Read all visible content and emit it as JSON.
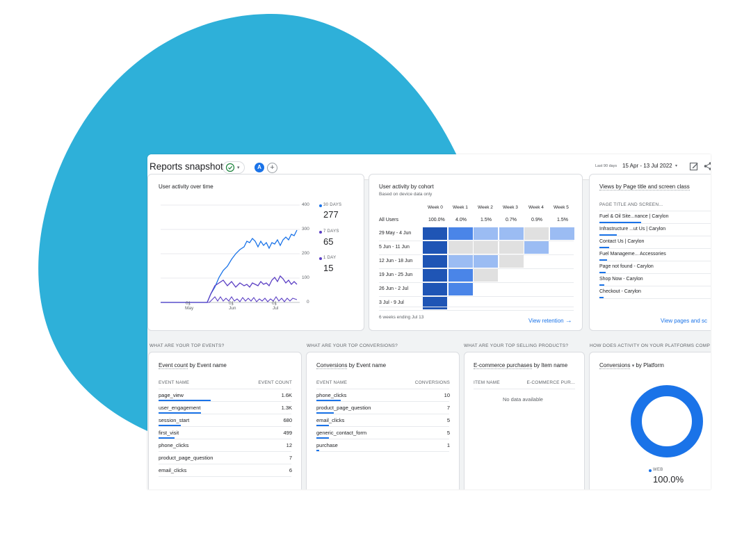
{
  "colors": {
    "blob": "#2eb0d9",
    "accent": "#1a73e8",
    "dark": "#1f55b5",
    "mid": "#4a85e8",
    "light": "#9bbcf3",
    "gray": "#e0e0e0",
    "purple": "#5b3fc4"
  },
  "header": {
    "title": "Reports snapshot",
    "avatar_letter": "A",
    "add_symbol": "+",
    "range_hint": "Last 90 days",
    "date_range": "15 Apr - 13 Jul 2022",
    "caret": "▾"
  },
  "activity": {
    "title": "User activity over time",
    "y_ticks": [
      "400",
      "300",
      "200",
      "100",
      "0"
    ],
    "x_ticks": [
      {
        "day": "01",
        "month": "May"
      },
      {
        "day": "01",
        "month": "Jun"
      },
      {
        "day": "01",
        "month": "Jul"
      }
    ],
    "legend": [
      {
        "label": "30 DAYS",
        "value": "277",
        "color": "#1a73e8"
      },
      {
        "label": "7 DAYS",
        "value": "65",
        "color": "#5b3fc4"
      },
      {
        "label": "1 DAY",
        "value": "15",
        "color": "#5b3fc4"
      }
    ]
  },
  "cohort": {
    "title": "User activity by cohort",
    "subtitle": "Based on device data only",
    "weeks": [
      "Week 0",
      "Week 1",
      "Week 2",
      "Week 3",
      "Week 4",
      "Week 5"
    ],
    "all_users_label": "All Users",
    "all_users_values": [
      "100.0%",
      "4.0%",
      "1.5%",
      "0.7%",
      "0.9%",
      "1.5%"
    ],
    "rows": [
      {
        "label": "29 May - 4 Jun",
        "cells": [
          "d",
          "m",
          "l",
          "l",
          "g",
          "l"
        ]
      },
      {
        "label": "5 Jun - 11 Jun",
        "cells": [
          "d",
          "g",
          "g",
          "g",
          "l"
        ]
      },
      {
        "label": "12 Jun - 18 Jun",
        "cells": [
          "d",
          "l",
          "l",
          "g"
        ]
      },
      {
        "label": "19 Jun - 25 Jun",
        "cells": [
          "d",
          "m",
          "g"
        ]
      },
      {
        "label": "26 Jun - 2 Jul",
        "cells": [
          "d",
          "m"
        ]
      },
      {
        "label": "3 Jul - 9 Jul",
        "cells": [
          "d"
        ]
      }
    ],
    "footer": "6 weeks ending Jul 13",
    "link": "View retention",
    "arrow": "→"
  },
  "pages": {
    "title": "Views by Page title and screen class",
    "col": "PAGE TITLE AND SCREEN...",
    "rows": [
      {
        "label": "Fuel & Oil Site...nance | Carylon",
        "bar": 60
      },
      {
        "label": "Infrastructure ...ut Us | Carylon",
        "bar": 25
      },
      {
        "label": "Contact Us | Carylon",
        "bar": 14
      },
      {
        "label": "Fuel Manageme... Accessories",
        "bar": 11
      },
      {
        "label": "Page not found - Carylon",
        "bar": 9
      },
      {
        "label": "Shop Now - Carylon",
        "bar": 7
      },
      {
        "label": "Checkout - Carylon",
        "bar": 6
      }
    ],
    "link": "View pages and sc"
  },
  "sections": {
    "events": "WHAT ARE YOUR TOP EVENTS?",
    "conversions": "WHAT ARE YOUR TOP CONVERSIONS?",
    "products": "WHAT ARE YOUR TOP SELLING PRODUCTS?",
    "platforms": "HOW DOES ACTIVITY ON YOUR PLATFORMS COMP"
  },
  "events": {
    "title_a": "Event count",
    "title_b": " by Event name",
    "col1": "EVENT NAME",
    "col2": "EVENT COUNT",
    "rows": [
      {
        "name": "page_view",
        "value": "1.6K",
        "bar": 1.0
      },
      {
        "name": "user_engagement",
        "value": "1.3K",
        "bar": 0.81
      },
      {
        "name": "session_start",
        "value": "680",
        "bar": 0.42
      },
      {
        "name": "first_visit",
        "value": "499",
        "bar": 0.31
      },
      {
        "name": "phone_clicks",
        "value": "12",
        "bar": 0
      },
      {
        "name": "product_page_question",
        "value": "7",
        "bar": 0
      },
      {
        "name": "email_clicks",
        "value": "6",
        "bar": 0
      }
    ]
  },
  "conversions": {
    "title_a": "Conversions",
    "title_b": " by Event name",
    "col1": "EVENT NAME",
    "col2": "CONVERSIONS",
    "rows": [
      {
        "name": "phone_clicks",
        "value": "10",
        "bar": 1.0
      },
      {
        "name": "product_page_question",
        "value": "7",
        "bar": 0.7
      },
      {
        "name": "email_clicks",
        "value": "5",
        "bar": 0.5
      },
      {
        "name": "generic_contact_form",
        "value": "5",
        "bar": 0.5
      },
      {
        "name": "purchase",
        "value": "1",
        "bar": 0.1
      }
    ]
  },
  "products": {
    "title_a": "E-commerce purchases",
    "title_b": " by Item name",
    "col1": "ITEM NAME",
    "col2": "E-COMMERCE PUR...",
    "empty": "No data available"
  },
  "platform": {
    "title_a": "Conversions",
    "title_caret": "▾",
    "title_b": "by Platform",
    "legend_label": "WEB",
    "legend_value": "100.0%"
  }
}
